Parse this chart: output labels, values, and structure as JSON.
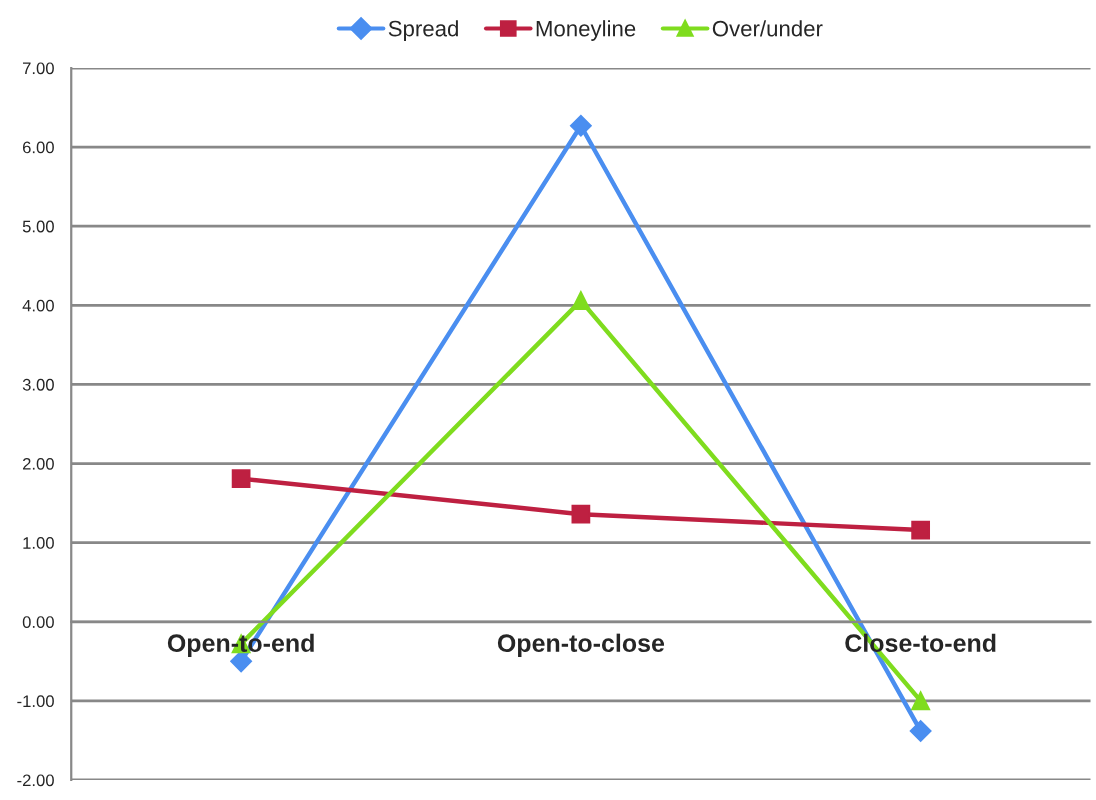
{
  "chart_data": {
    "type": "line",
    "categories": [
      "Open-to-end",
      "Open-to-close",
      "Close-to-end"
    ],
    "series": [
      {
        "name": "Spread",
        "color": "#4a8ef0",
        "marker": "diamond",
        "values": [
          -0.5,
          6.27,
          -1.38
        ]
      },
      {
        "name": "Moneyline",
        "color": "#be2041",
        "marker": "square",
        "values": [
          1.81,
          1.36,
          1.16
        ]
      },
      {
        "name": "Over/under",
        "color": "#7fdc1e",
        "marker": "triangle",
        "values": [
          -0.28,
          4.06,
          -1.0
        ]
      }
    ],
    "ylim": [
      -2,
      7
    ],
    "yticks": [
      {
        "value": -2,
        "label": "-2.00"
      },
      {
        "value": -1,
        "label": "-1.00"
      },
      {
        "value": 0,
        "label": "0.00"
      },
      {
        "value": 1,
        "label": "1.00"
      },
      {
        "value": 2,
        "label": "2.00"
      },
      {
        "value": 3,
        "label": "3.00"
      },
      {
        "value": 4,
        "label": "4.00"
      },
      {
        "value": 5,
        "label": "5.00"
      },
      {
        "value": 6,
        "label": "6.00"
      },
      {
        "value": 7,
        "label": "7.00"
      }
    ],
    "grid": "y",
    "legend": "top",
    "line_style": "solid"
  }
}
